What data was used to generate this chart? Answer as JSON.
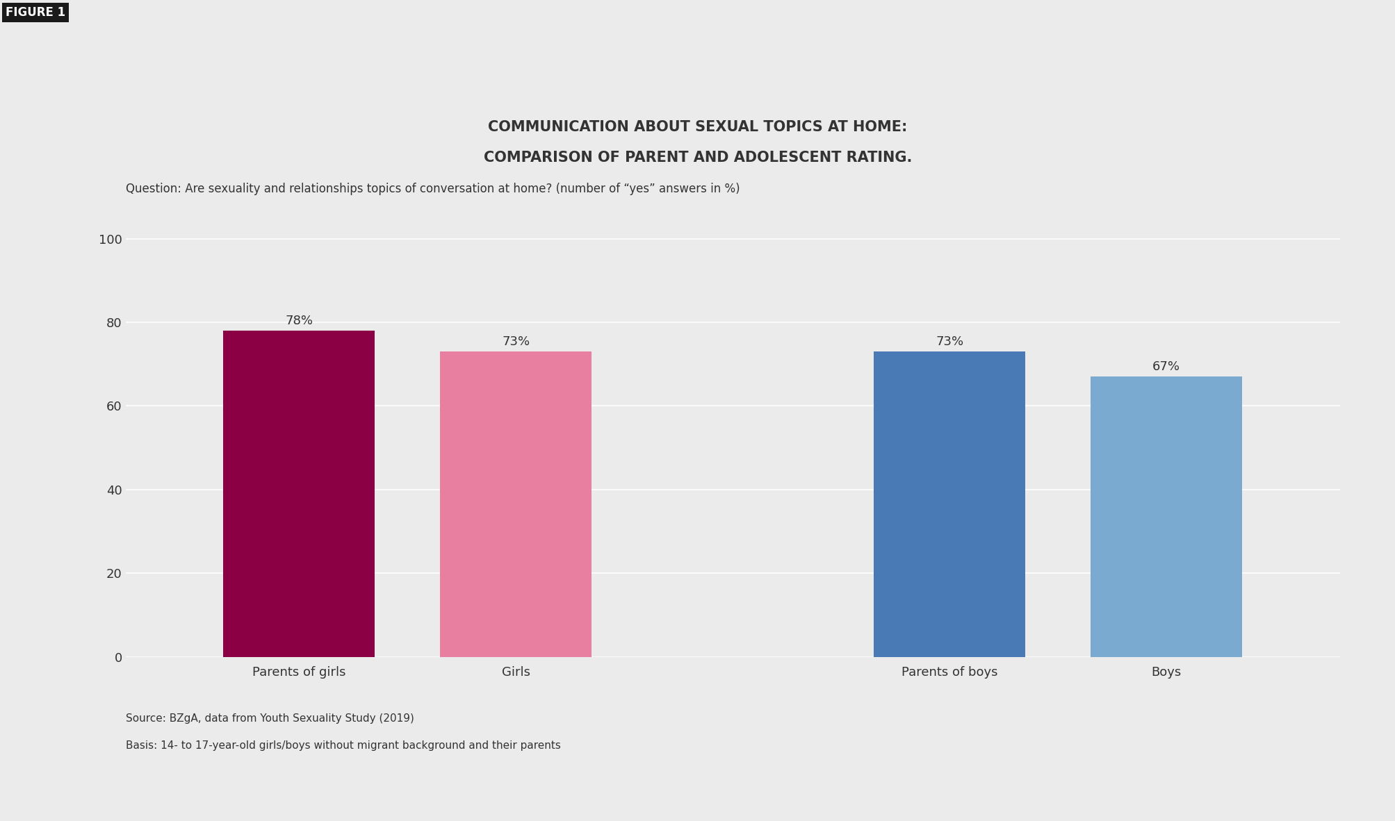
{
  "title_line1": "COMMUNICATION ABOUT SEXUAL TOPICS AT HOME:",
  "title_line2": "COMPARISON OF PARENT AND ADOLESCENT RATING.",
  "subtitle": "Question: Are sexuality and relationships topics of conversation at home? (number of “yes” answers in %)",
  "figure_label": "FIGURE 1",
  "categories": [
    "Parents of girls",
    "Girls",
    "Parents of boys",
    "Boys"
  ],
  "values": [
    78,
    73,
    73,
    67
  ],
  "bar_colors": [
    "#8B0045",
    "#E87FA0",
    "#4A7AB5",
    "#7AAAD0"
  ],
  "bar_positions": [
    1,
    2,
    4,
    5
  ],
  "value_labels": [
    "78%",
    "73%",
    "73%",
    "67%"
  ],
  "ylim": [
    0,
    108
  ],
  "yticks": [
    0,
    20,
    40,
    60,
    80,
    100
  ],
  "background_color": "#EBEBEB",
  "plot_background_color": "#EBEBEB",
  "grid_color": "#FFFFFF",
  "text_color": "#333333",
  "source_line1": "Source: BZgA, data from Youth Sexuality Study (2019)",
  "source_line2": "Basis: 14- to 17-year-old girls/boys without migrant background and their parents",
  "title_fontsize": 15,
  "subtitle_fontsize": 12,
  "tick_label_fontsize": 13,
  "value_label_fontsize": 13,
  "source_fontsize": 11,
  "bar_width": 0.7
}
